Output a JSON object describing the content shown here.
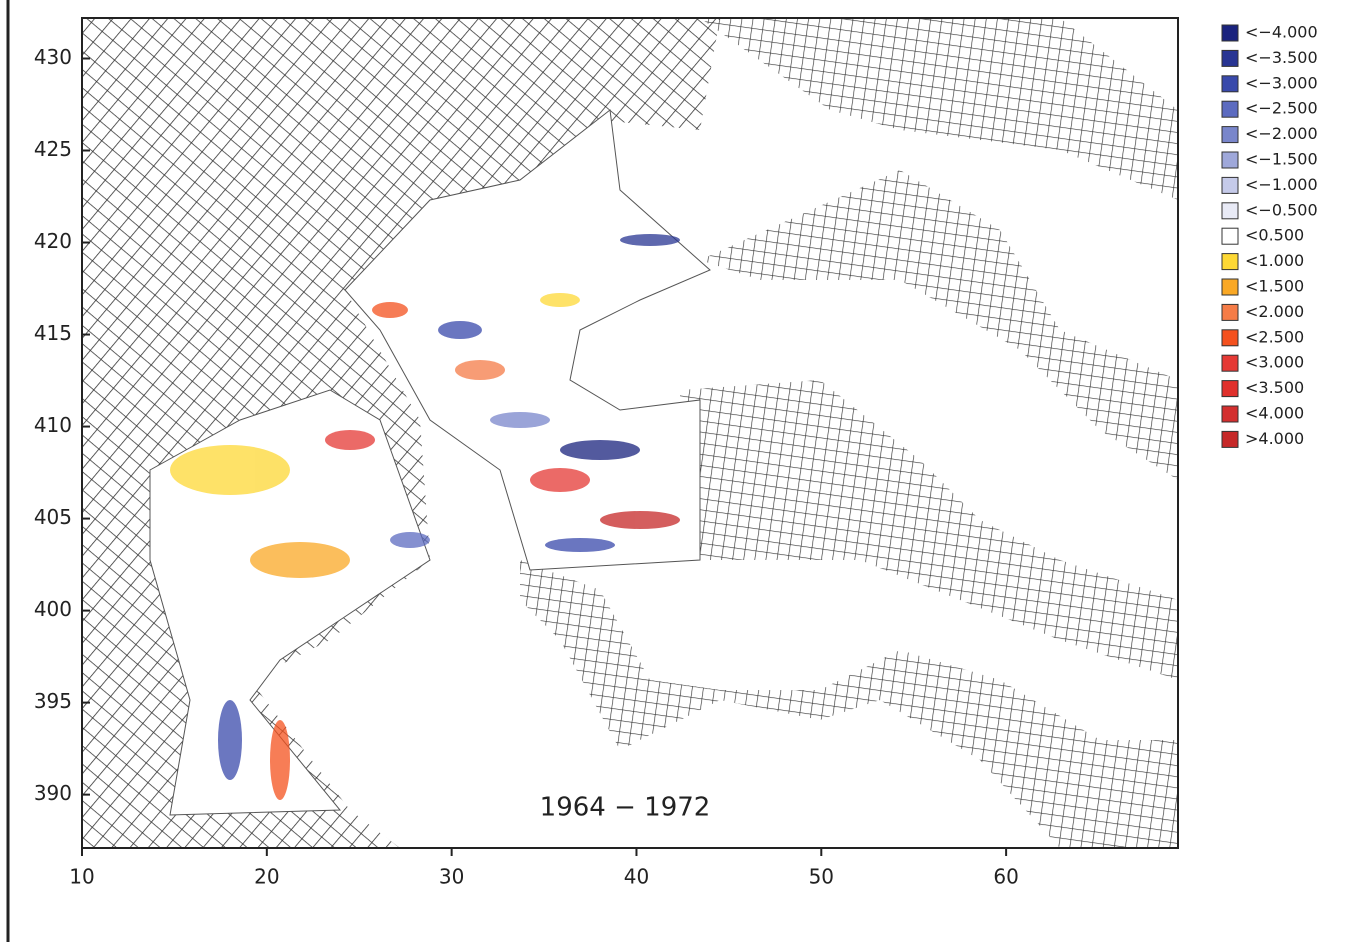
{
  "chart_data": {
    "type": "map",
    "annotation": "1964 − 1972",
    "xlim": [
      10,
      69.3
    ],
    "ylim": [
      387.1,
      432.2
    ],
    "xticks": [
      10,
      20,
      30,
      40,
      50,
      60
    ],
    "yticks": [
      390,
      395,
      400,
      405,
      410,
      415,
      420,
      425,
      430
    ],
    "legend_position": "right",
    "legend": [
      {
        "label": "<−4.000",
        "color": "#1a237e"
      },
      {
        "label": "<−3.500",
        "color": "#283593"
      },
      {
        "label": "<−3.000",
        "color": "#3949ab"
      },
      {
        "label": "<−2.500",
        "color": "#5c6bc0"
      },
      {
        "label": "<−2.000",
        "color": "#7986cb"
      },
      {
        "label": "<−1.500",
        "color": "#9fa8da"
      },
      {
        "label": "<−1.000",
        "color": "#c5cae9"
      },
      {
        "label": "<−0.500",
        "color": "#e8eaf6"
      },
      {
        "label": "<0.500",
        "color": "#ffffff"
      },
      {
        "label": "<1.000",
        "color": "#fdd835"
      },
      {
        "label": "<1.500",
        "color": "#f9a825"
      },
      {
        "label": "<2.000",
        "color": "#f57c47"
      },
      {
        "label": "<2.500",
        "color": "#f4511e"
      },
      {
        "label": "<3.000",
        "color": "#e53935"
      },
      {
        "label": "<3.500",
        "color": "#e0302c"
      },
      {
        "label": "<4.000",
        "color": "#d32f2f"
      },
      {
        "label": ">4.000",
        "color": "#c62828"
      }
    ]
  }
}
